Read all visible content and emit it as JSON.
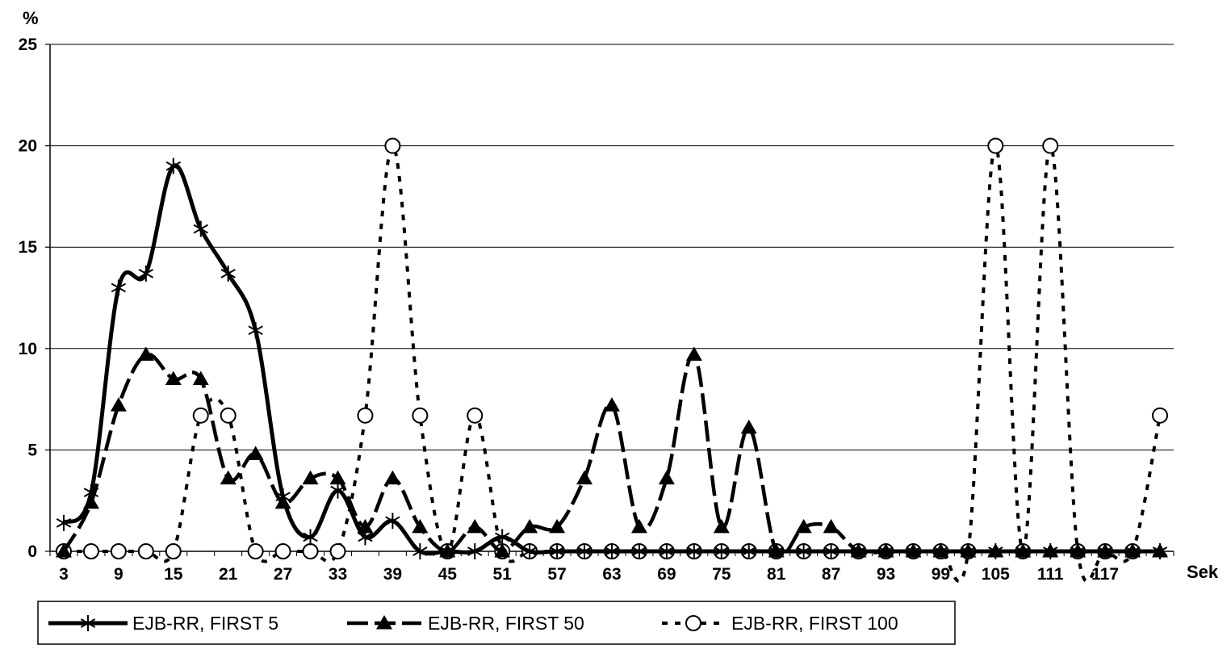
{
  "chart_data": {
    "type": "line",
    "title": "",
    "ylabel": "%",
    "xlabel": "Sek",
    "ylim": [
      0,
      25
    ],
    "yticks": [
      0,
      5,
      10,
      15,
      20,
      25
    ],
    "grid": "horizontal",
    "legend_position": "bottom",
    "x": [
      3,
      6,
      9,
      12,
      15,
      18,
      21,
      24,
      27,
      30,
      33,
      36,
      39,
      42,
      45,
      48,
      51,
      54,
      57,
      60,
      63,
      66,
      69,
      72,
      75,
      78,
      81,
      84,
      87,
      90,
      93,
      96,
      99,
      102,
      105,
      108,
      111,
      114,
      117,
      120,
      123
    ],
    "xtick_labels": [
      "3",
      "9",
      "15",
      "21",
      "27",
      "33",
      "39",
      "45",
      "51",
      "57",
      "63",
      "69",
      "75",
      "81",
      "87",
      "93",
      "99",
      "105",
      "111",
      "117"
    ],
    "series": [
      {
        "name": "EJB-RR, FIRST 5",
        "style": "solid",
        "marker": "star",
        "color": "#000000",
        "values": [
          1.4,
          2.9,
          13.0,
          13.7,
          19.0,
          15.9,
          13.7,
          10.9,
          2.7,
          0.7,
          3.0,
          0.7,
          1.5,
          0,
          0,
          0,
          0.7,
          0,
          0,
          0,
          0,
          0,
          0,
          0,
          0,
          0,
          0,
          0,
          0,
          0,
          0,
          0,
          0,
          0,
          0,
          0,
          0,
          0,
          0,
          0,
          0
        ]
      },
      {
        "name": "EJB-RR, FIRST 50",
        "style": "long-dash",
        "marker": "triangle",
        "color": "#000000",
        "values": [
          0,
          2.4,
          7.2,
          9.7,
          8.5,
          8.5,
          3.6,
          4.8,
          2.4,
          3.6,
          3.6,
          1.2,
          3.6,
          1.2,
          0,
          1.2,
          0,
          1.2,
          1.2,
          3.6,
          7.2,
          1.2,
          3.6,
          9.7,
          1.2,
          6.1,
          0,
          1.2,
          1.2,
          0,
          0,
          0,
          0,
          0,
          0,
          0,
          0,
          0,
          0,
          0,
          0
        ]
      },
      {
        "name": "EJB-RR, FIRST 100",
        "style": "short-dash",
        "marker": "circle",
        "color": "#000000",
        "values": [
          0,
          0,
          0,
          0,
          0,
          6.7,
          6.7,
          0,
          0,
          0,
          0,
          6.7,
          20.0,
          6.7,
          0,
          6.7,
          0,
          0,
          0,
          0,
          0,
          0,
          0,
          0,
          0,
          0,
          0,
          0,
          0,
          0,
          0,
          0,
          0,
          0,
          20.0,
          0,
          20.0,
          0,
          0,
          0,
          6.7
        ]
      }
    ]
  }
}
